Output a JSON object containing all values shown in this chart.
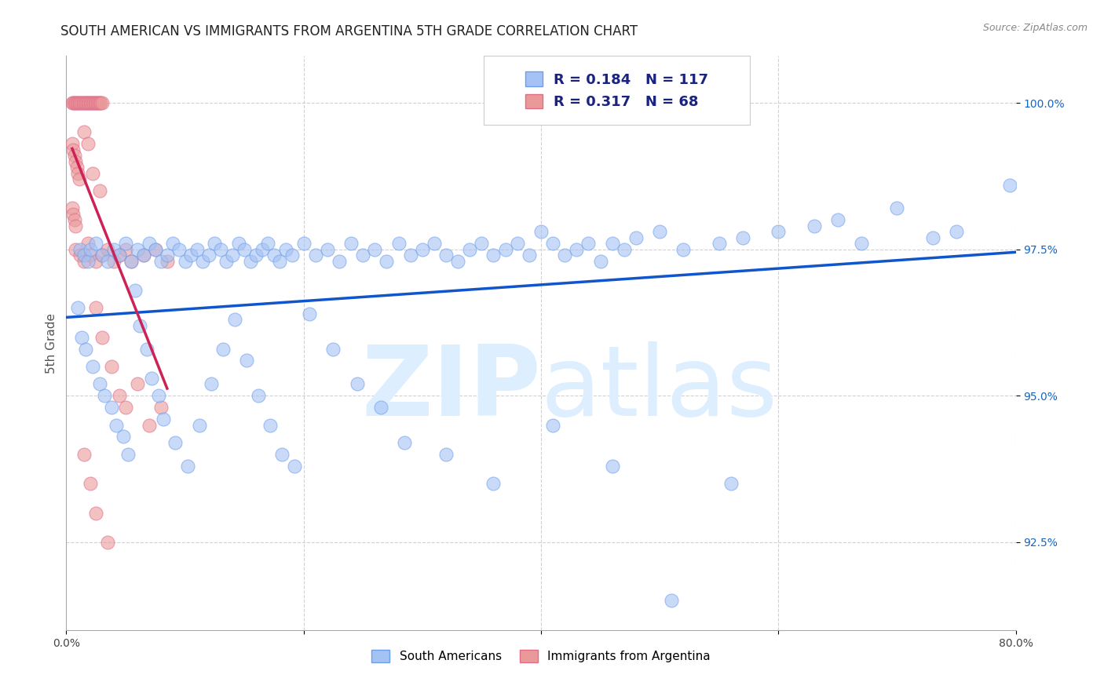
{
  "title": "SOUTH AMERICAN VS IMMIGRANTS FROM ARGENTINA 5TH GRADE CORRELATION CHART",
  "source": "Source: ZipAtlas.com",
  "ylabel": "5th Grade",
  "x_min": 0.0,
  "x_max": 80.0,
  "y_min": 91.0,
  "y_max": 100.8,
  "x_ticks": [
    0.0,
    20.0,
    40.0,
    60.0,
    80.0
  ],
  "x_tick_labels": [
    "0.0%",
    "",
    "",
    "",
    "80.0%"
  ],
  "y_ticks": [
    92.5,
    95.0,
    97.5,
    100.0
  ],
  "y_tick_labels": [
    "92.5%",
    "95.0%",
    "97.5%",
    "100.0%"
  ],
  "legend_labels": [
    "South Americans",
    "Immigrants from Argentina"
  ],
  "legend_R_N": {
    "blue": {
      "R": 0.184,
      "N": 117
    },
    "pink": {
      "R": 0.317,
      "N": 68
    }
  },
  "blue_color": "#a4c2f4",
  "pink_color": "#ea9999",
  "blue_edge_color": "#6d9eeb",
  "pink_edge_color": "#e06c8a",
  "blue_line_color": "#1155cc",
  "pink_line_color": "#cc2255",
  "watermark_color": "#ddeeff",
  "title_fontsize": 12,
  "tick_fontsize": 10,
  "background_color": "#ffffff",
  "blue_x": [
    1.2,
    1.5,
    1.8,
    2.0,
    2.5,
    3.0,
    3.5,
    4.0,
    4.5,
    5.0,
    5.5,
    6.0,
    6.5,
    7.0,
    7.5,
    8.0,
    8.5,
    9.0,
    9.5,
    10.0,
    10.5,
    11.0,
    11.5,
    12.0,
    12.5,
    13.0,
    13.5,
    14.0,
    14.5,
    15.0,
    15.5,
    16.0,
    16.5,
    17.0,
    17.5,
    18.0,
    18.5,
    19.0,
    20.0,
    21.0,
    22.0,
    23.0,
    24.0,
    25.0,
    26.0,
    27.0,
    28.0,
    29.0,
    30.0,
    31.0,
    32.0,
    33.0,
    34.0,
    35.0,
    36.0,
    37.0,
    38.0,
    39.0,
    40.0,
    41.0,
    42.0,
    43.0,
    44.0,
    45.0,
    46.0,
    47.0,
    48.0,
    50.0,
    52.0,
    55.0,
    57.0,
    60.0,
    63.0,
    65.0,
    67.0,
    70.0,
    73.0,
    75.0,
    79.5,
    1.0,
    1.3,
    1.6,
    2.2,
    2.8,
    3.2,
    3.8,
    4.2,
    4.8,
    5.2,
    5.8,
    6.2,
    6.8,
    7.2,
    7.8,
    8.2,
    9.2,
    10.2,
    11.2,
    12.2,
    13.2,
    14.2,
    15.2,
    16.2,
    17.2,
    18.2,
    19.2,
    20.5,
    22.5,
    24.5,
    26.5,
    28.5,
    32.0,
    36.0,
    41.0,
    46.0,
    51.0,
    56.0
  ],
  "blue_y": [
    97.5,
    97.4,
    97.3,
    97.5,
    97.6,
    97.4,
    97.3,
    97.5,
    97.4,
    97.6,
    97.3,
    97.5,
    97.4,
    97.6,
    97.5,
    97.3,
    97.4,
    97.6,
    97.5,
    97.3,
    97.4,
    97.5,
    97.3,
    97.4,
    97.6,
    97.5,
    97.3,
    97.4,
    97.6,
    97.5,
    97.3,
    97.4,
    97.5,
    97.6,
    97.4,
    97.3,
    97.5,
    97.4,
    97.6,
    97.4,
    97.5,
    97.3,
    97.6,
    97.4,
    97.5,
    97.3,
    97.6,
    97.4,
    97.5,
    97.6,
    97.4,
    97.3,
    97.5,
    97.6,
    97.4,
    97.5,
    97.6,
    97.4,
    97.8,
    97.6,
    97.4,
    97.5,
    97.6,
    97.3,
    97.6,
    97.5,
    97.7,
    97.8,
    97.5,
    97.6,
    97.7,
    97.8,
    97.9,
    98.0,
    97.6,
    98.2,
    97.7,
    97.8,
    98.6,
    96.5,
    96.0,
    95.8,
    95.5,
    95.2,
    95.0,
    94.8,
    94.5,
    94.3,
    94.0,
    96.8,
    96.2,
    95.8,
    95.3,
    95.0,
    94.6,
    94.2,
    93.8,
    94.5,
    95.2,
    95.8,
    96.3,
    95.6,
    95.0,
    94.5,
    94.0,
    93.8,
    96.4,
    95.8,
    95.2,
    94.8,
    94.2,
    94.0,
    93.5,
    94.5,
    93.8,
    91.5,
    93.5
  ],
  "pink_x": [
    0.5,
    0.6,
    0.7,
    0.8,
    0.9,
    1.0,
    1.1,
    1.2,
    1.3,
    1.4,
    1.5,
    1.6,
    1.7,
    1.8,
    1.9,
    2.0,
    2.1,
    2.2,
    2.3,
    2.4,
    2.5,
    2.6,
    2.7,
    2.8,
    2.9,
    3.0,
    0.5,
    0.6,
    0.7,
    0.8,
    0.9,
    1.0,
    1.1,
    0.5,
    0.6,
    0.7,
    0.8,
    1.5,
    1.8,
    2.2,
    2.8,
    0.8,
    1.2,
    1.5,
    1.8,
    2.0,
    2.5,
    3.0,
    3.5,
    4.0,
    4.5,
    5.0,
    5.5,
    6.5,
    7.5,
    8.5,
    2.5,
    3.0,
    3.8,
    4.5,
    5.0,
    6.0,
    7.0,
    8.0,
    1.5,
    2.0,
    2.5,
    3.5
  ],
  "pink_y": [
    100.0,
    100.0,
    100.0,
    100.0,
    100.0,
    100.0,
    100.0,
    100.0,
    100.0,
    100.0,
    100.0,
    100.0,
    100.0,
    100.0,
    100.0,
    100.0,
    100.0,
    100.0,
    100.0,
    100.0,
    100.0,
    100.0,
    100.0,
    100.0,
    100.0,
    100.0,
    99.3,
    99.2,
    99.1,
    99.0,
    98.9,
    98.8,
    98.7,
    98.2,
    98.1,
    98.0,
    97.9,
    99.5,
    99.3,
    98.8,
    98.5,
    97.5,
    97.4,
    97.3,
    97.6,
    97.4,
    97.3,
    97.4,
    97.5,
    97.3,
    97.4,
    97.5,
    97.3,
    97.4,
    97.5,
    97.3,
    96.5,
    96.0,
    95.5,
    95.0,
    94.8,
    95.2,
    94.5,
    94.8,
    94.0,
    93.5,
    93.0,
    92.5
  ]
}
